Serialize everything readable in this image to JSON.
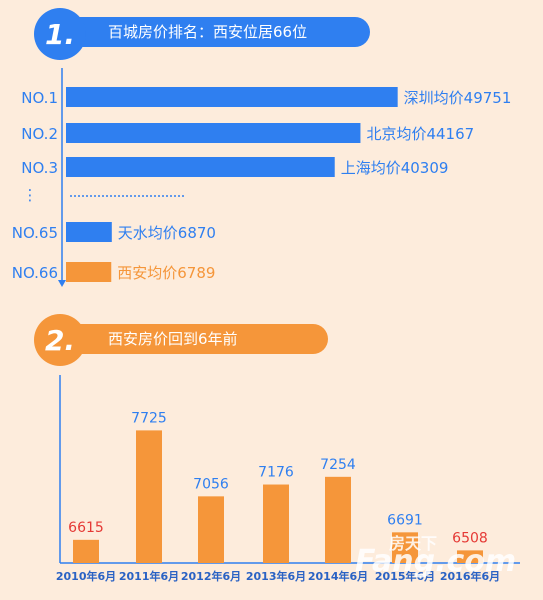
{
  "section1": {
    "number": "1.",
    "title": "百城房价排名：西安位居66位",
    "color": "#2f7ff0"
  },
  "section2": {
    "number": "2.",
    "title": "西安房价回到6年前",
    "color": "#f5963a"
  },
  "watermark": {
    "text": "房天下",
    "domain": "Fang.com"
  },
  "chart_data": [
    {
      "type": "bar",
      "orientation": "horizontal",
      "categories": [
        "NO.1",
        "NO.2",
        "NO.3",
        "NO.65",
        "NO.66"
      ],
      "gap_marker": "⋮",
      "bar_labels": [
        "深圳均价49751",
        "北京均价44167",
        "上海均价40309",
        "天水均价6870",
        "西安均价6789"
      ],
      "values": [
        49751,
        44167,
        40309,
        6870,
        6789
      ],
      "colors": [
        "#2f7ff0",
        "#2f7ff0",
        "#2f7ff0",
        "#2f7ff0",
        "#f5963a"
      ],
      "label_colors": [
        "#2f7ff0",
        "#2f7ff0",
        "#2f7ff0",
        "#2f7ff0",
        "#f5963a"
      ],
      "xlim": [
        0,
        60000
      ]
    },
    {
      "type": "bar",
      "categories": [
        "2010年6月",
        "2011年6月",
        "2012年6月",
        "2013年6月",
        "2014年6月",
        "2015年6月",
        "2016年6月"
      ],
      "values": [
        6615,
        7725,
        7056,
        7176,
        7254,
        6691,
        6508
      ],
      "label_colors": [
        "#e53935",
        "#2f7ff0",
        "#2f7ff0",
        "#2f7ff0",
        "#2f7ff0",
        "#2f7ff0",
        "#e53935"
      ],
      "bar_color": "#f5963a",
      "ylim": [
        6380,
        7800
      ]
    }
  ]
}
